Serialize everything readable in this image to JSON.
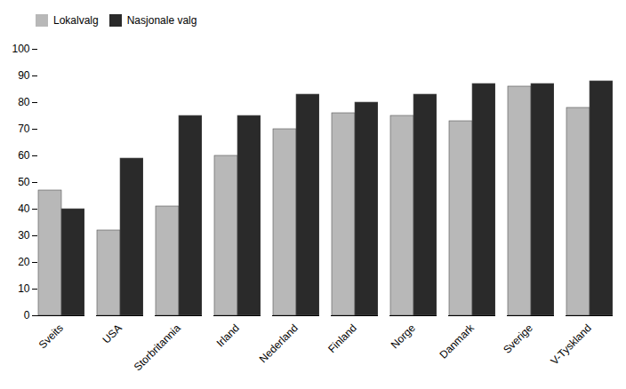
{
  "chart_data": {
    "type": "bar",
    "categories": [
      "Sveits",
      "USA",
      "Storbritannia",
      "Irland",
      "Nederland",
      "Finland",
      "Norge",
      "Danmark",
      "Sverige",
      "V-Tyskland"
    ],
    "series": [
      {
        "name": "Lokalvalg",
        "color": "#b8b8b8",
        "values": [
          47,
          32,
          41,
          60,
          70,
          76,
          75,
          73,
          86,
          78
        ]
      },
      {
        "name": "Nasjonale valg",
        "color": "#2a2a2a",
        "values": [
          40,
          59,
          75,
          75,
          83,
          80,
          83,
          87,
          87,
          88
        ]
      }
    ],
    "ylim": [
      0,
      100
    ],
    "yticks": [
      0,
      10,
      20,
      30,
      40,
      50,
      60,
      70,
      80,
      90,
      100
    ],
    "legend": "upper left",
    "grid": false
  }
}
